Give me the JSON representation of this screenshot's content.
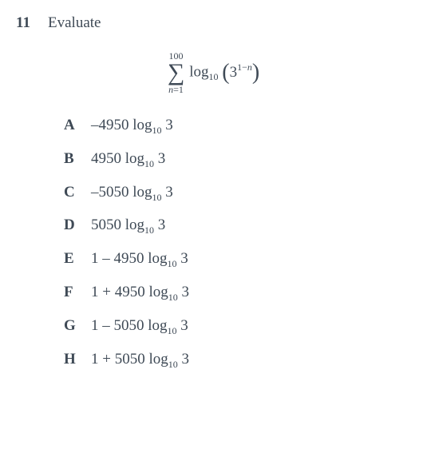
{
  "question": {
    "number": "11",
    "stem": "Evaluate",
    "summation": {
      "upper": "100",
      "symbol": "∑",
      "lower_var": "n",
      "lower_eq": "=1",
      "log_text": "log",
      "log_base": "10",
      "lparen": "(",
      "base": "3",
      "exp_pre": "1−",
      "exp_var": "n",
      "rparen": ")"
    }
  },
  "options": {
    "A": {
      "label": "A",
      "pre": "–4950 ",
      "log": "log",
      "sub": "10",
      "post": " 3"
    },
    "B": {
      "label": "B",
      "pre": "4950 ",
      "log": "log",
      "sub": "10",
      "post": " 3"
    },
    "C": {
      "label": "C",
      "pre": "–5050 ",
      "log": "log",
      "sub": "10",
      "post": " 3"
    },
    "D": {
      "label": "D",
      "pre": "5050 ",
      "log": "log",
      "sub": "10",
      "post": " 3"
    },
    "E": {
      "label": "E",
      "pre": "1 – 4950 ",
      "log": "log",
      "sub": "10",
      "post": " 3"
    },
    "F": {
      "label": "F",
      "pre": "1 + 4950 ",
      "log": "log",
      "sub": "10",
      "post": " 3"
    },
    "G": {
      "label": "G",
      "pre": "1 – 5050 ",
      "log": "log",
      "sub": "10",
      "post": " 3"
    },
    "H": {
      "label": "H",
      "pre": "1 + 5050 ",
      "log": "log",
      "sub": "10",
      "post": " 3"
    }
  },
  "style": {
    "text_color": "#3f4a56",
    "background_color": "#ffffff"
  }
}
